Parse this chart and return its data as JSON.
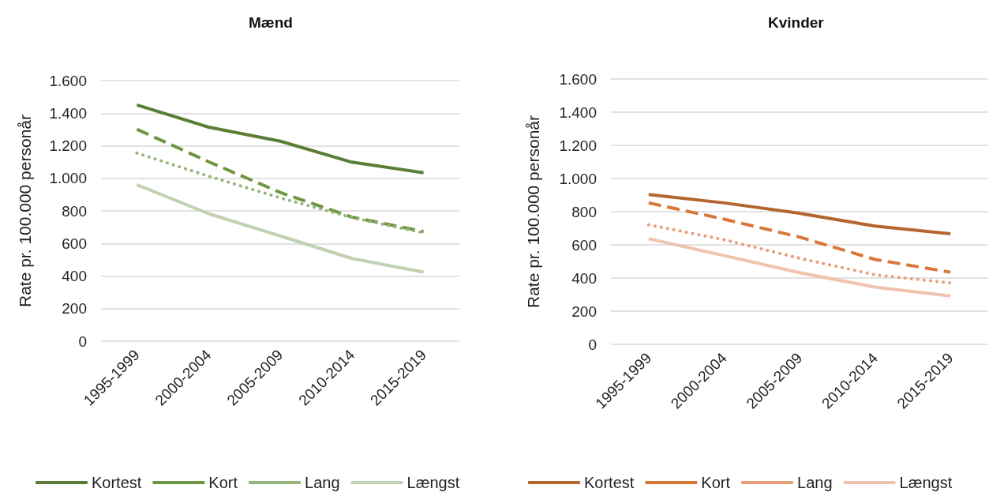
{
  "chart_data": [
    {
      "type": "line",
      "title": "Mænd",
      "ylabel": "Rate pr. 100.000 personår",
      "categories": [
        "1995-1999",
        "2000-2004",
        "2005-2009",
        "2010-2014",
        "2015-2019"
      ],
      "series": [
        {
          "name": "Kortest",
          "color": "#5b7e36",
          "line_style": "solid",
          "values": [
            1450,
            1314,
            1228,
            1099,
            1034
          ]
        },
        {
          "name": "Kort",
          "color": "#6f9640",
          "line_style": "dashed",
          "values": [
            1301,
            1102,
            913,
            762,
            673
          ]
        },
        {
          "name": "Lang",
          "color": "#93b47a",
          "line_style": "dotted",
          "values": [
            1155,
            1013,
            880,
            759,
            665
          ]
        },
        {
          "name": "Længst",
          "color": "#c1d1b3",
          "line_style": "solid",
          "values": [
            961,
            783,
            646,
            508,
            424
          ]
        }
      ],
      "ylim": [
        0,
        1600
      ],
      "yticks": [
        0,
        200,
        400,
        600,
        {
          "value": 800,
          "label": "800"
        },
        {
          "value": 1000,
          "label": "1.000"
        },
        {
          "value": 1200,
          "label": "1.200"
        },
        {
          "value": 1400,
          "label": "1.400"
        },
        {
          "value": 1600,
          "label": "1.600"
        }
      ],
      "grid": "y",
      "legend": "bottom",
      "marker": "none"
    },
    {
      "type": "line",
      "title": "Kvinder",
      "ylabel": "Rate pr. 100.000 personår",
      "categories": [
        "1995-1999",
        "2000-2004",
        "2005-2009",
        "2010-2014",
        "2015-2019"
      ],
      "series": [
        {
          "name": "Kortest",
          "color": "#b5652e",
          "line_style": "solid",
          "values": [
            904,
            853,
            790,
            713,
            667
          ]
        },
        {
          "name": "Kort",
          "color": "#d9773a",
          "line_style": "dashed",
          "values": [
            853,
            755,
            647,
            512,
            435
          ]
        },
        {
          "name": "Lang",
          "color": "#e89d7a",
          "line_style": "dotted",
          "values": [
            721,
            631,
            519,
            419,
            370
          ]
        },
        {
          "name": "Længst",
          "color": "#f0c3b0",
          "line_style": "solid",
          "values": [
            637,
            535,
            432,
            345,
            292
          ]
        }
      ],
      "ylim": [
        0,
        1600
      ],
      "yticks": [
        0,
        200,
        400,
        600,
        {
          "value": 800,
          "label": "800"
        },
        {
          "value": 1000,
          "label": "1.000"
        },
        {
          "value": 1200,
          "label": "1.200"
        },
        {
          "value": 1400,
          "label": "1.400"
        },
        {
          "value": 1600,
          "label": "1.600"
        }
      ],
      "grid": "y",
      "legend": "bottom",
      "marker": "none"
    }
  ]
}
